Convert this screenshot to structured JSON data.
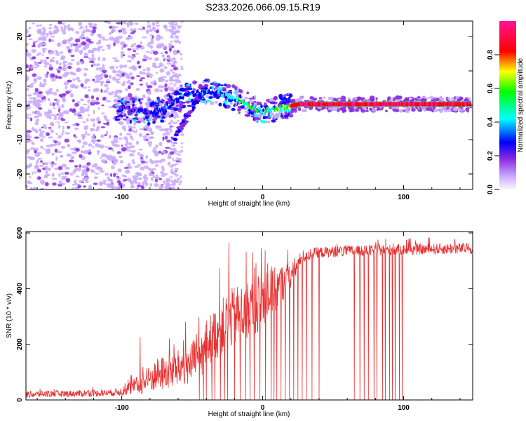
{
  "figure_title": "S233.2026.066.09.15.R19",
  "chart_data": [
    {
      "type": "heatmap",
      "title": "S233.2026.066.09.15.R19",
      "xlabel": "Height of straight line (km)",
      "ylabel": "Frequency (Hz)",
      "xlim": [
        -168,
        149
      ],
      "ylim": [
        -24.5,
        24.5
      ],
      "xticks": [
        -100,
        0,
        100
      ],
      "yticks": [
        -20,
        -10,
        0,
        10,
        20
      ],
      "grid": false,
      "colorbar": {
        "label": "Normalized spectral amplitude",
        "range": [
          0,
          1
        ],
        "ticks": [
          "0.0",
          "0.2",
          "0.4",
          "0.6",
          "0.8"
        ],
        "colormap": [
          "#f8f8ff",
          "#c8a8ff",
          "#8a2be2",
          "#0000ff",
          "#00ffff",
          "#00ff00",
          "#ffff00",
          "#ff0000",
          "#ff1493"
        ]
      },
      "ridge": [
        {
          "x": -100,
          "f": -1.0,
          "amp": 0.3
        },
        {
          "x": -80,
          "f": -2.0,
          "amp": 0.35
        },
        {
          "x": -70,
          "f": -1.0,
          "amp": 0.4
        },
        {
          "x": -55,
          "f": 3.0,
          "amp": 0.4
        },
        {
          "x": -40,
          "f": 4.0,
          "amp": 0.4
        },
        {
          "x": -25,
          "f": 3.0,
          "amp": 0.45
        },
        {
          "x": -15,
          "f": 1.0,
          "amp": 0.6
        },
        {
          "x": 0,
          "f": -2.0,
          "amp": 0.55
        },
        {
          "x": 10,
          "f": -1.0,
          "amp": 0.6
        },
        {
          "x": 25,
          "f": 0.3,
          "amp": 0.95
        },
        {
          "x": 60,
          "f": 0.3,
          "amp": 0.95
        },
        {
          "x": 100,
          "f": 0.3,
          "amp": 0.95
        },
        {
          "x": 148,
          "f": 0.3,
          "amp": 0.95
        }
      ]
    },
    {
      "type": "line",
      "xlabel": "Height of straight line (km)",
      "ylabel": "SNR (10 * v/v)",
      "xlim": [
        -168,
        149
      ],
      "ylim": [
        0,
        605
      ],
      "xticks": [
        -100,
        0,
        100
      ],
      "yticks": [
        0,
        200,
        400,
        600
      ],
      "grid": false,
      "series": [
        {
          "name": "SNR",
          "color": "#e83030",
          "envelope_x": [
            -168,
            -110,
            -100,
            -85,
            -75,
            -60,
            -45,
            -40,
            -30,
            -20,
            -10,
            0,
            10,
            20,
            30,
            40,
            60,
            100,
            149
          ],
          "envelope_y": [
            20,
            25,
            30,
            60,
            90,
            110,
            150,
            200,
            260,
            300,
            320,
            360,
            400,
            450,
            520,
            530,
            535,
            540,
            545
          ],
          "noise_amplitude": [
            12,
            12,
            15,
            40,
            60,
            70,
            80,
            90,
            100,
            110,
            110,
            100,
            80,
            50,
            25,
            20,
            20,
            20,
            20
          ],
          "notable_peaks": [
            {
              "x": -87,
              "y": 225
            },
            {
              "x": -63,
              "y": 200
            },
            {
              "x": -24,
              "y": 565
            },
            {
              "x": -13,
              "y": 380
            },
            {
              "x": -1,
              "y": 545
            }
          ],
          "dropouts_to_zero": [
            -45,
            -42,
            -40,
            -36,
            -34,
            -30,
            -27,
            -25,
            -20,
            -16,
            -12,
            -9,
            -6,
            -2,
            2,
            6,
            8,
            10,
            13,
            16,
            19,
            22,
            25,
            28,
            31,
            35,
            40,
            65,
            69,
            72,
            75,
            79,
            81,
            85,
            87,
            90,
            92,
            94,
            97,
            99
          ]
        }
      ]
    }
  ]
}
